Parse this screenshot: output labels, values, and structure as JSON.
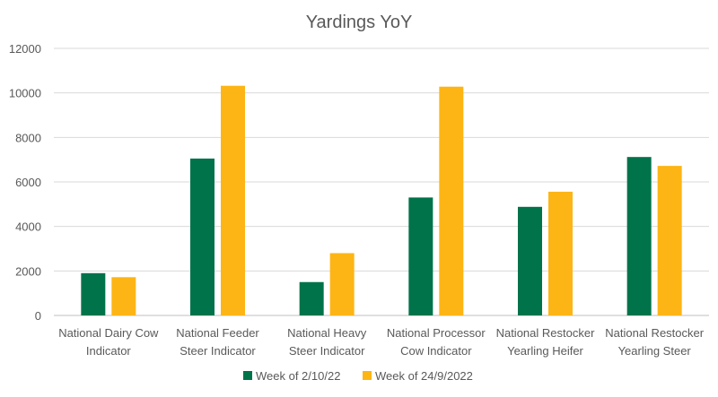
{
  "chart_data": {
    "type": "bar",
    "title": "Yardings YoY",
    "xlabel": "",
    "ylabel": "",
    "ylim": [
      0,
      12000
    ],
    "yticks": [
      0,
      2000,
      4000,
      6000,
      8000,
      10000,
      12000
    ],
    "grid": true,
    "legend_position": "bottom",
    "categories": [
      [
        "National Dairy Cow",
        "Indicator"
      ],
      [
        "National Feeder",
        "Steer Indicator"
      ],
      [
        "National Heavy",
        "Steer Indicator"
      ],
      [
        "National Processor",
        "Cow Indicator"
      ],
      [
        "National Restocker",
        "Yearling Heifer"
      ],
      [
        "National Restocker",
        "Yearling Steer"
      ]
    ],
    "series": [
      {
        "name": "Week of 2/10/22",
        "color": "#00734A",
        "values": [
          1900,
          7050,
          1500,
          5300,
          4880,
          7120
        ]
      },
      {
        "name": "Week of 24/9/2022",
        "color": "#FDB515",
        "values": [
          1720,
          10320,
          2800,
          10280,
          5560,
          6720
        ]
      }
    ]
  }
}
